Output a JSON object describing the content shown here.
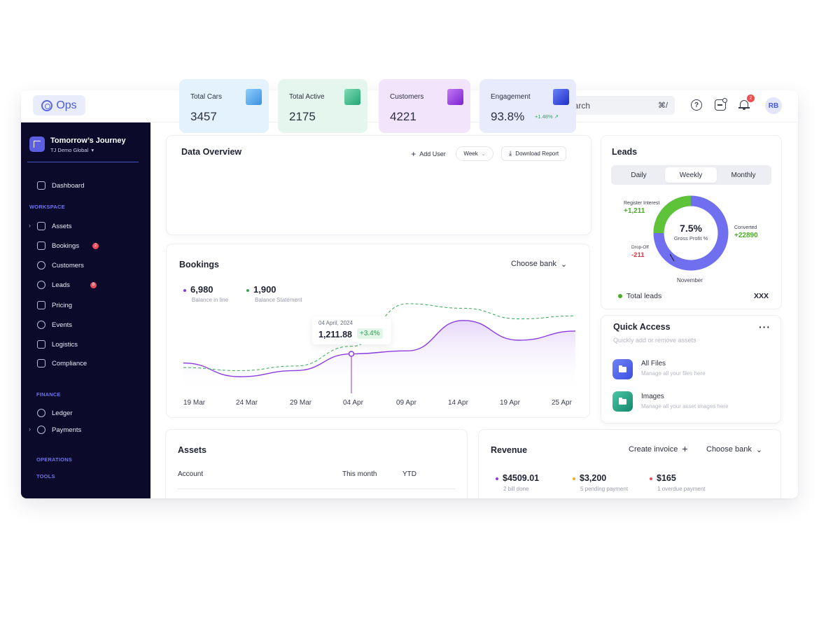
{
  "app": {
    "logo_text": "Ops"
  },
  "topbar": {
    "search_placeholder": "Search",
    "search_shortcut": "⌘/",
    "notification_count": "2",
    "avatar_initials": "RB"
  },
  "sidebar": {
    "org_name": "Tomorrow’s Journey",
    "org_sub": "TJ Demo Global",
    "dashboard": "Dashboard",
    "workspace_label": "WORKSPACE",
    "workspace_items": [
      {
        "label": "Assets",
        "badge": ""
      },
      {
        "label": "Bookings",
        "badge": "2"
      },
      {
        "label": "Customers",
        "badge": ""
      },
      {
        "label": "Leads",
        "badge": "8"
      },
      {
        "label": "Pricing",
        "badge": ""
      },
      {
        "label": "Events",
        "badge": ""
      },
      {
        "label": "Logistics",
        "badge": ""
      },
      {
        "label": "Compliance",
        "badge": ""
      }
    ],
    "finance_label": "FINANCE",
    "finance_items": [
      "Ledger",
      "Payments"
    ],
    "operations_label": "OPERATIONS",
    "tools_label": "TOOLS"
  },
  "overview": {
    "title": "Data Overview",
    "add_user": "Add User",
    "period": "Week",
    "download": "Download Report",
    "stats": [
      {
        "label": "Total Cars",
        "value": "3457",
        "color": "#4aa3e8"
      },
      {
        "label": "Total Active",
        "value": "2175",
        "color": "#38b98a"
      },
      {
        "label": "Customers",
        "value": "4221",
        "color": "#8c2fd9"
      },
      {
        "label": "Engagement",
        "value": "93.8%",
        "delta": "+1.48%",
        "color": "#2c43d6"
      }
    ]
  },
  "bookings": {
    "title": "Bookings",
    "bank": "Choose bank",
    "series": [
      {
        "value": "6,980",
        "label": "Balance in line",
        "color": "#8b3be0"
      },
      {
        "value": "1,900",
        "label": "Balance Statement",
        "color": "#34a853"
      }
    ],
    "tooltip": {
      "date": "04 April, 2024",
      "value": "1,211.88",
      "change": "+3.4%"
    },
    "x_labels": [
      "19 Mar",
      "24 Mar",
      "29 Mar",
      "04 Apr",
      "09 Apr",
      "14 Apr",
      "19 Apr",
      "25 Apr"
    ]
  },
  "leads": {
    "title": "Leads",
    "tabs": [
      "Daily",
      "Weekly",
      "Monthly"
    ],
    "active_tab": "Weekly",
    "center_value": "7.5%",
    "center_label": "Gross Profit %",
    "register_label": "Register Interest",
    "register_value": "+1,211",
    "dropoff_label": "Drop-Off",
    "dropoff_value": "-211",
    "converted_label": "Converted",
    "converted_value": "+22890",
    "month": "November",
    "total_label": "Total leads",
    "total_value": "XXX"
  },
  "quick_access": {
    "title": "Quick Access",
    "subtitle": "Quickly add or remove assets",
    "items": [
      {
        "title": "All Files",
        "desc": "Manage all your files here",
        "color": "#4b5fe6"
      },
      {
        "title": "Images",
        "desc": "Manage all your asset images here",
        "color": "#1e9e83"
      }
    ]
  },
  "assets": {
    "title": "Assets",
    "columns": [
      "Account",
      "This month",
      "YTD"
    ]
  },
  "revenue": {
    "title": "Revenue",
    "create_invoice": "Create invoice",
    "bank": "Choose bank",
    "items": [
      {
        "value": "$4509.01",
        "label": "2 bill done",
        "color": "#8b3be0"
      },
      {
        "value": "$3,200",
        "label": "5 pending payment",
        "color": "#f2b01e"
      },
      {
        "value": "$165",
        "label": "1 overdue payment",
        "color": "#ef4c5c"
      }
    ]
  },
  "chart_data": {
    "type": "line",
    "title": "Bookings",
    "categories": [
      "19 Mar",
      "24 Mar",
      "29 Mar",
      "04 Apr",
      "09 Apr",
      "14 Apr",
      "19 Apr",
      "25 Apr"
    ],
    "series": [
      {
        "name": "Balance in line",
        "values": [
          40,
          22,
          30,
          52,
          56,
          96,
          70,
          82
        ]
      },
      {
        "name": "Balance Statement",
        "values": [
          34,
          30,
          36,
          62,
          118,
          112,
          98,
          102
        ]
      }
    ],
    "ylim": [
      0,
      140
    ],
    "highlight": {
      "x": "04 Apr",
      "value": "1,211.88",
      "change": "+3.4%"
    }
  }
}
